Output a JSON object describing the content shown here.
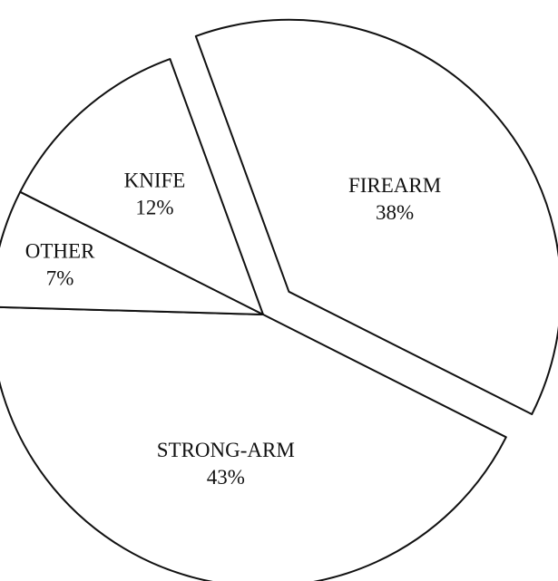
{
  "chart_data": {
    "type": "pie",
    "slices": [
      {
        "label": "FIREARM",
        "value": 38,
        "value_label": "38%",
        "exploded": true
      },
      {
        "label": "STRONG-ARM",
        "value": 43,
        "value_label": "43%",
        "exploded": false
      },
      {
        "label": "OTHER",
        "value": 7,
        "value_label": "7%",
        "exploded": false
      },
      {
        "label": "KNIFE",
        "value": 12,
        "value_label": "12%",
        "exploded": false
      }
    ],
    "units": "%",
    "legend": "none",
    "colors": {
      "fill": "#ffffff",
      "stroke": "#111111",
      "text": "#111111"
    }
  }
}
